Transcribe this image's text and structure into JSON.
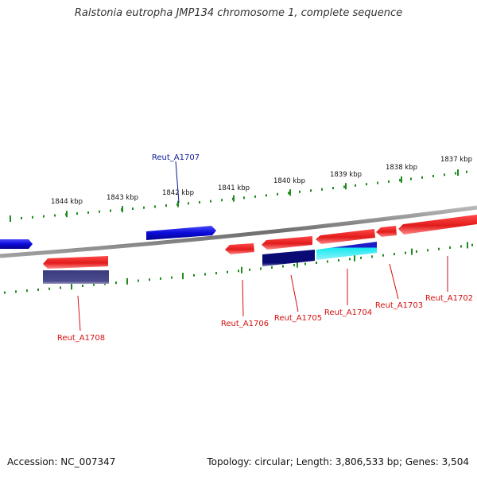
{
  "title": "Ralstonia eutropha JMP134 chromosome 1, complete sequence",
  "footer": {
    "accession": "Accession: NC_007347",
    "summary": "Topology: circular; Length: 3,806,533 bp; Genes: 3,504"
  },
  "ticks": [
    "1844 kbp",
    "1843 kbp",
    "1842 kbp",
    "1841 kbp",
    "1840 kbp",
    "1839 kbp",
    "1838 kbp",
    "1837 kbp"
  ],
  "genes": [
    {
      "label": "Reut_A1707",
      "color": "#0a0ad8"
    },
    {
      "label": "Reut_A1708",
      "color": "#e21b1b"
    },
    {
      "label": "Reut_A1706",
      "color": "#e21b1b"
    },
    {
      "label": "Reut_A1705",
      "color": "#e21b1b"
    },
    {
      "label": "Reut_A1704",
      "color": "#e21b1b"
    },
    {
      "label": "Reut_A1703",
      "color": "#e21b1b"
    },
    {
      "label": "Reut_A1702",
      "color": "#e21b1b"
    }
  ],
  "colors": {
    "forward_strand": "#0a0ad8",
    "reverse_strand": "#e21b1b",
    "blue_label": "#0c1a9a",
    "red_label": "#d41010",
    "tick_mark": "#1f8a1f",
    "backbone": "#8a8a8a",
    "dark_navy": "#0a0a74",
    "slate": "#4a4a8c",
    "cyan": "#19e8f0"
  }
}
